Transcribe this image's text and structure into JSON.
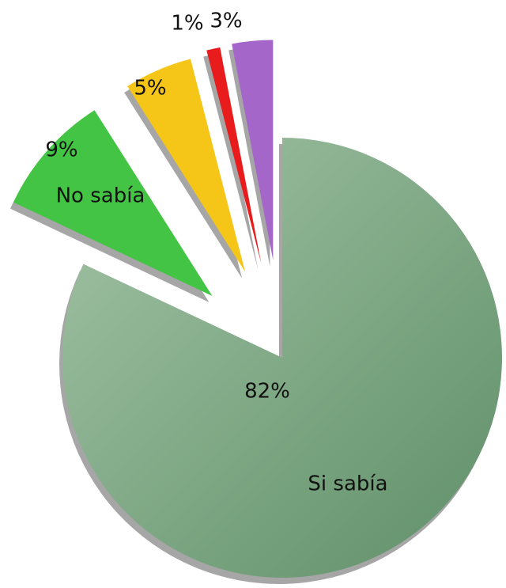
{
  "chart_data": {
    "type": "pie",
    "categories": [
      "Si sabía",
      "No sabía",
      null,
      null,
      null
    ],
    "values": [
      82,
      9,
      5,
      1,
      3
    ],
    "value_labels": [
      "82%",
      "9%",
      "5%",
      "1%",
      "3%"
    ],
    "colors": [
      "#7faa86",
      "#44c444",
      "#f5c518",
      "#e81c1c",
      "#a566c9"
    ]
  }
}
